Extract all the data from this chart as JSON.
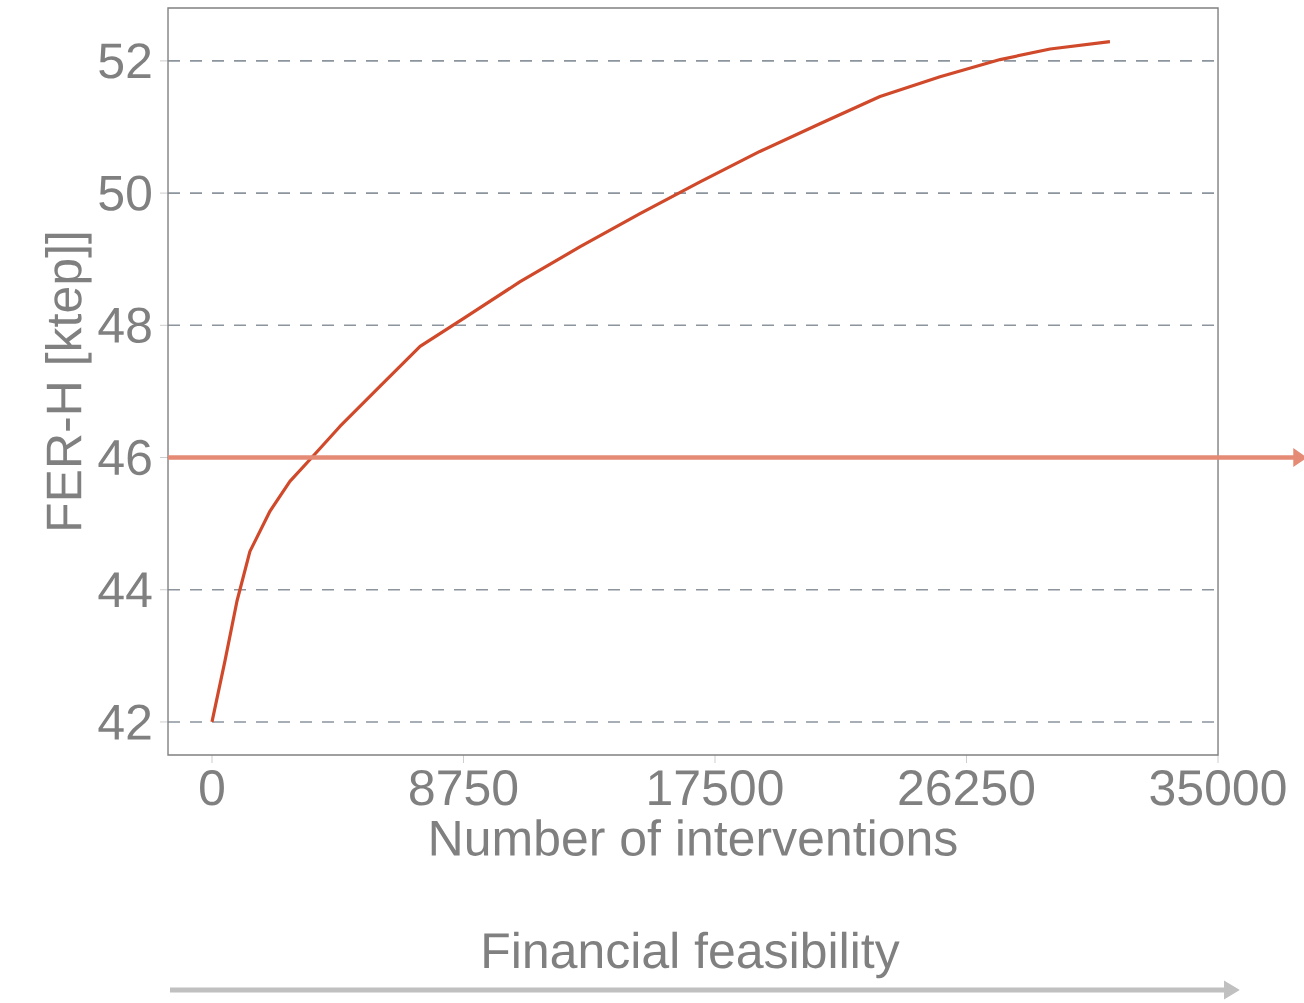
{
  "chart_data": {
    "type": "line",
    "xlabel": "Number of interventions",
    "ylabel": "FER-H [ktep]]",
    "annotations": [
      "Financial feasibility"
    ],
    "x": [
      0,
      450,
      870,
      1320,
      2020,
      2710,
      3410,
      4450,
      5850,
      7240,
      8810,
      10720,
      12810,
      14890,
      16980,
      19060,
      21150,
      23240,
      25330,
      27420,
      29160,
      31240
    ],
    "series": [
      {
        "color": "#d0492a",
        "values": [
          42,
          42.92,
          43.83,
          44.58,
          45.19,
          45.64,
          45.97,
          46.47,
          47.08,
          47.68,
          48.12,
          48.66,
          49.19,
          49.69,
          50.17,
          50.63,
          51.05,
          51.46,
          51.76,
          52.02,
          52.18,
          52.29
        ]
      }
    ],
    "xlim": [
      -1530,
      35000
    ],
    "ylim": [
      41.5,
      52.8
    ],
    "xticks": [
      0,
      8750,
      17500,
      26250,
      35000
    ],
    "yticks": [
      42,
      44,
      46,
      48,
      50,
      52
    ],
    "grid": "y",
    "line_style": "solid",
    "marker": "none",
    "ref_lines": [
      {
        "axis": "y",
        "value": 46,
        "color": "#e58a75"
      }
    ]
  }
}
